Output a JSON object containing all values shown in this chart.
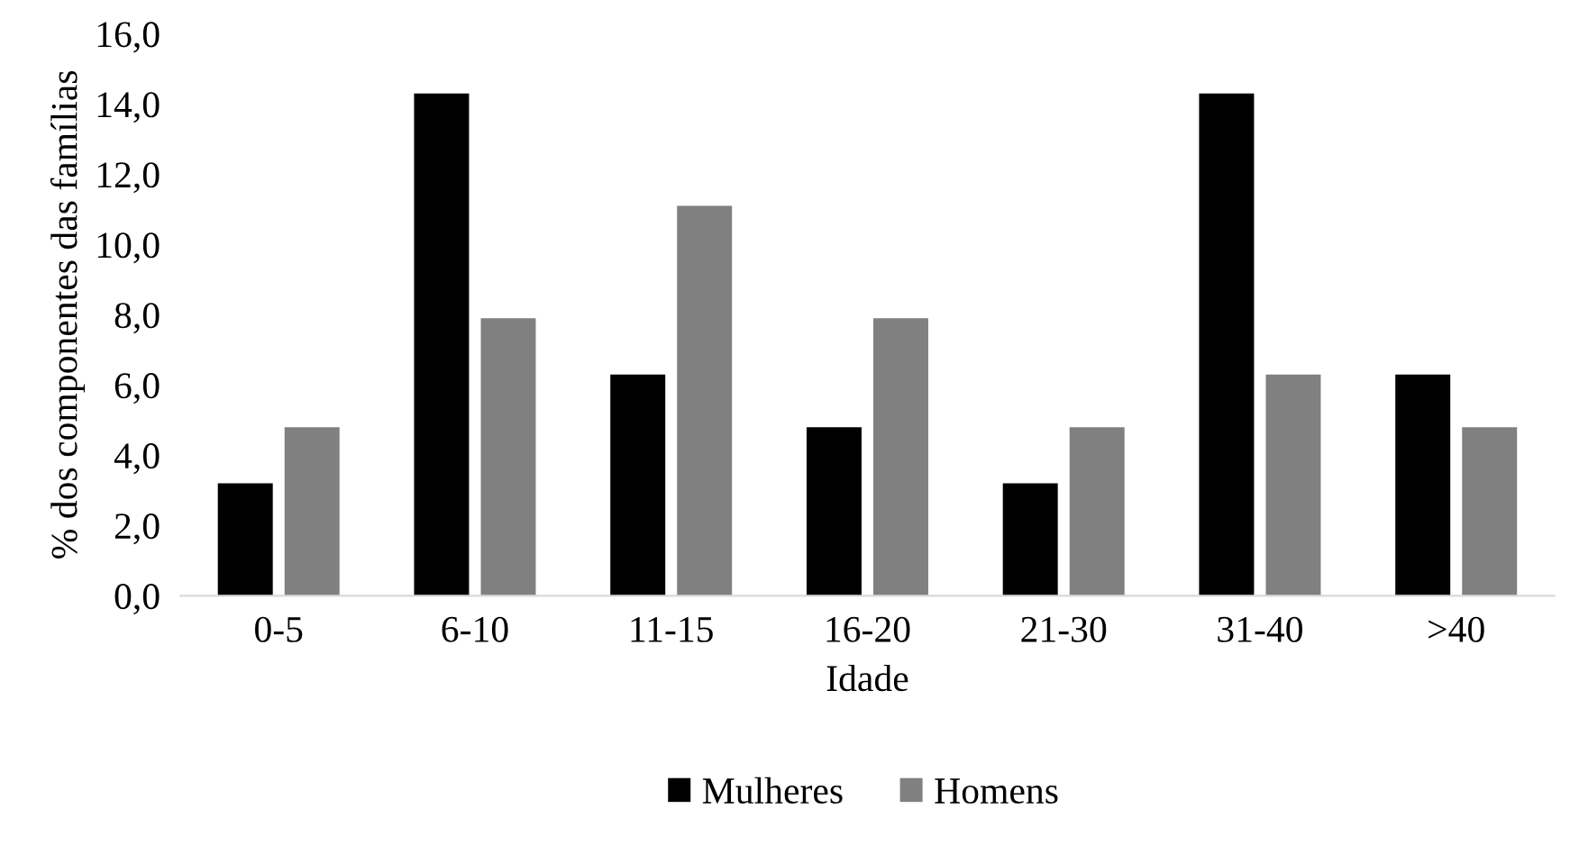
{
  "chart_data": {
    "type": "bar",
    "xlabel": "Idade",
    "ylabel": "% dos componentes das famílias",
    "categories": [
      "0-5",
      "6-10",
      "11-15",
      "16-20",
      "21-30",
      "31-40",
      ">40"
    ],
    "series": [
      {
        "name": "Mulheres",
        "color": "#000000",
        "values": [
          3.2,
          14.3,
          6.3,
          4.8,
          3.2,
          14.3,
          6.3
        ]
      },
      {
        "name": "Homens",
        "color": "#808080",
        "values": [
          4.8,
          7.9,
          11.1,
          7.9,
          4.8,
          6.3,
          4.8
        ]
      }
    ],
    "ylim": [
      0,
      16
    ],
    "yticks": [
      {
        "value": 0,
        "label": "0,0"
      },
      {
        "value": 2,
        "label": "2,0"
      },
      {
        "value": 4,
        "label": "4,0"
      },
      {
        "value": 6,
        "label": "6,0"
      },
      {
        "value": 8,
        "label": "8,0"
      },
      {
        "value": 10,
        "label": "10,0"
      },
      {
        "value": 12,
        "label": "12,0"
      },
      {
        "value": 14,
        "label": "14,0"
      },
      {
        "value": 16,
        "label": "16,0"
      }
    ],
    "grid": false,
    "legend": "bottom"
  }
}
